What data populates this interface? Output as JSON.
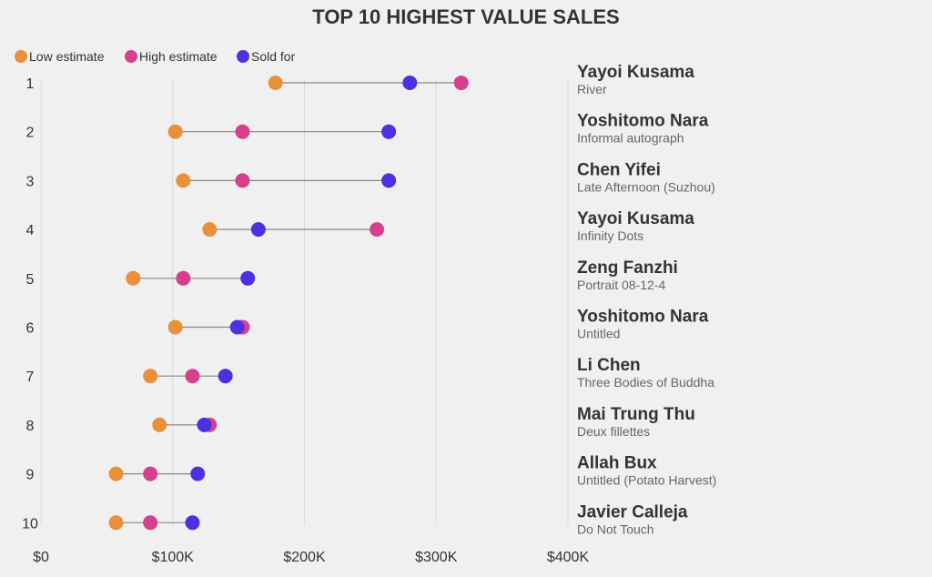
{
  "chart_data": {
    "type": "dot-range",
    "title": "TOP 10 HIGHEST VALUE SALES",
    "legend": [
      "Low estimate",
      "High estimate",
      "Sold for"
    ],
    "legend_placement": "top-left",
    "colors": {
      "low": "#E8903A",
      "high": "#D63F8C",
      "sold": "#4A32E0"
    },
    "xlim": [
      0,
      400000
    ],
    "xticks": [
      0,
      100000,
      200000,
      300000,
      400000
    ],
    "xtick_labels": [
      "$0",
      "$100K",
      "$200K",
      "$300K",
      "$400K"
    ],
    "grid": true,
    "rows": [
      {
        "rank": "1",
        "artist": "Yayoi Kusama",
        "work": "River",
        "low": 178000,
        "high": 319000,
        "sold": 280000
      },
      {
        "rank": "2",
        "artist": "Yoshitomo Nara",
        "work": "Informal autograph",
        "low": 102000,
        "high": 153000,
        "sold": 264000
      },
      {
        "rank": "3",
        "artist": "Chen Yifei",
        "work": "Late Afternoon (Suzhou)",
        "low": 108000,
        "high": 153000,
        "sold": 264000
      },
      {
        "rank": "4",
        "artist": "Yayoi Kusama",
        "work": "Infinity Dots",
        "low": 128000,
        "high": 255000,
        "sold": 165000
      },
      {
        "rank": "5",
        "artist": "Zeng Fanzhi",
        "work": "Portrait 08-12-4",
        "low": 70000,
        "high": 108000,
        "sold": 157000
      },
      {
        "rank": "6",
        "artist": "Yoshitomo Nara",
        "work": "Untitled",
        "low": 102000,
        "high": 153000,
        "sold": 149000
      },
      {
        "rank": "7",
        "artist": "Li Chen",
        "work": "Three Bodies of Buddha",
        "low": 83000,
        "high": 115000,
        "sold": 140000
      },
      {
        "rank": "8",
        "artist": "Mai Trung Thu",
        "work": "Deux fillettes",
        "low": 90000,
        "high": 128000,
        "sold": 124000
      },
      {
        "rank": "9",
        "artist": "Allah Bux",
        "work": "Untitled (Potato Harvest)",
        "low": 57000,
        "high": 83000,
        "sold": 119000
      },
      {
        "rank": "10",
        "artist": "Javier Calleja",
        "work": "Do Not Touch",
        "low": 57000,
        "high": 83000,
        "sold": 115000
      }
    ]
  }
}
